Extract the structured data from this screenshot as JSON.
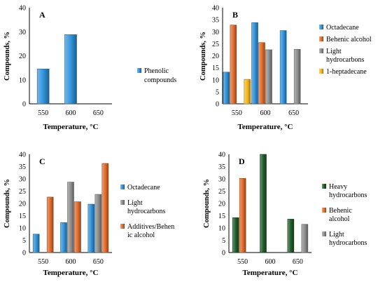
{
  "chart_data": [
    {
      "type": "bar",
      "panel_label": "A",
      "categories": [
        "550",
        "600",
        "650"
      ],
      "series": [
        {
          "name": "Phenolic compounds",
          "color": "#2e90d8",
          "values": [
            14.5,
            28.8,
            null
          ]
        }
      ],
      "ylabel": "Compounds, %",
      "xlabel": "Temperature, °C",
      "ylim": [
        0,
        40
      ],
      "yticks": [
        0,
        10,
        20,
        30,
        40
      ],
      "legend": "right"
    },
    {
      "type": "bar",
      "panel_label": "B",
      "categories": [
        "550",
        "600",
        "650"
      ],
      "series": [
        {
          "name": "Octadecane",
          "color": "#2e90d8",
          "values": [
            13.2,
            33.8,
            30.5
          ]
        },
        {
          "name": "Behenic alcohol",
          "color": "#e06a2a",
          "values": [
            32.8,
            25.5,
            null
          ]
        },
        {
          "name": "Light hydrocarbons",
          "color": "#8c8c8c",
          "values": [
            null,
            22.5,
            22.7
          ]
        },
        {
          "name": "1-heptadecane",
          "color": "#f2b417",
          "values": [
            10.2,
            null,
            null
          ]
        }
      ],
      "ylabel": "Compounds, %",
      "xlabel": "Temperature, °C",
      "ylim": [
        0,
        40
      ],
      "yticks": [
        0,
        5,
        10,
        15,
        20,
        25,
        30,
        35,
        40
      ],
      "legend": "right"
    },
    {
      "type": "bar",
      "panel_label": "C",
      "categories": [
        "550",
        "600",
        "650"
      ],
      "series": [
        {
          "name": "Octadecane",
          "color": "#2e90d8",
          "values": [
            7.5,
            12.2,
            19.7
          ]
        },
        {
          "name": "Light hydrocarbons",
          "color": "#8c8c8c",
          "values": [
            null,
            28.7,
            23.7
          ]
        },
        {
          "name": "Additives/Behenic alcohol",
          "color": "#e06a2a",
          "values": [
            22.6,
            20.7,
            36.3
          ]
        }
      ],
      "ylabel": "Compounds, %",
      "xlabel": "Temperature, °C",
      "ylim": [
        0,
        40
      ],
      "yticks": [
        0,
        5,
        10,
        15,
        20,
        25,
        30,
        35,
        40
      ],
      "legend": "right"
    },
    {
      "type": "bar",
      "panel_label": "D",
      "categories": [
        "550",
        "600",
        "650"
      ],
      "series": [
        {
          "name": "Heavy hydrocarbons",
          "color": "#1e5a28",
          "values": [
            14.2,
            40.0,
            13.6
          ]
        },
        {
          "name": "Behenic alcohol",
          "color": "#e06a2a",
          "values": [
            30.2,
            null,
            null
          ]
        },
        {
          "name": "Light hydrocarbons",
          "color": "#8c8c8c",
          "values": [
            null,
            null,
            11.5
          ]
        }
      ],
      "ylabel": "Compounds, %",
      "xlabel": "Temperature, °C",
      "ylim": [
        0,
        40
      ],
      "yticks": [
        0,
        5,
        10,
        15,
        20,
        25,
        30,
        35,
        40
      ],
      "legend": "right"
    }
  ]
}
